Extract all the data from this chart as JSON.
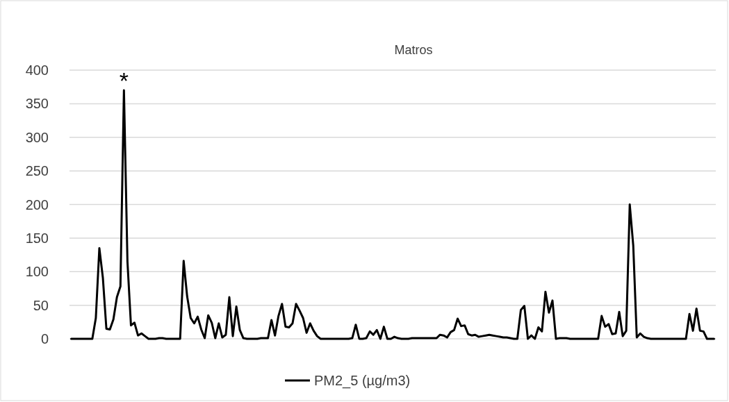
{
  "chart_data": {
    "type": "line",
    "title": "Matros",
    "categories": [
      null,
      null,
      null,
      null,
      null,
      null,
      null,
      null,
      null,
      null,
      null,
      null,
      null,
      null,
      null,
      null,
      null,
      null,
      null,
      null,
      null,
      null,
      null,
      null,
      null,
      null,
      null,
      null,
      null,
      null,
      null,
      null,
      null,
      null,
      null,
      null,
      null,
      null,
      null,
      null,
      null,
      null,
      null,
      null,
      null,
      null,
      null,
      null,
      null,
      null,
      null,
      null,
      null,
      null,
      null,
      null,
      null,
      null,
      null,
      null,
      null,
      null,
      null,
      null,
      null,
      null,
      null,
      null,
      null,
      null,
      null,
      null,
      null,
      null,
      null,
      null,
      null,
      null,
      null,
      null,
      null,
      null,
      null,
      null,
      null,
      null,
      null,
      null,
      null,
      null,
      null,
      null,
      null,
      null,
      null,
      null,
      null,
      null,
      null,
      null,
      null,
      null,
      null,
      null,
      null,
      null,
      null,
      null,
      null,
      null,
      null,
      null,
      null,
      null,
      null,
      null,
      null,
      null,
      null,
      null,
      null,
      null,
      null,
      null,
      null,
      null,
      null,
      null,
      null,
      null,
      null,
      null,
      null,
      null,
      null,
      null,
      null,
      null,
      null,
      null,
      null,
      null,
      null,
      null,
      null,
      null,
      null,
      null,
      null,
      null,
      null,
      null,
      null,
      null,
      null,
      null,
      null,
      null,
      null,
      null,
      null,
      null,
      null,
      null,
      null,
      null,
      null,
      null,
      null,
      null,
      null,
      null,
      null,
      null,
      null,
      null,
      null,
      null,
      null,
      null,
      null,
      null,
      null,
      null
    ],
    "series": [
      {
        "name": "PM2_5 (µg/m3)",
        "color": "#000000",
        "values": [
          0,
          0,
          0,
          0,
          0,
          0,
          0,
          31,
          135,
          91,
          15,
          14,
          29,
          62,
          78,
          370,
          115,
          20,
          24,
          5,
          8,
          4,
          0,
          0,
          0,
          1,
          1,
          0,
          0,
          0,
          0,
          0,
          116,
          63,
          31,
          23,
          33,
          14,
          1,
          35,
          24,
          1,
          23,
          2,
          6,
          62,
          4,
          48,
          13,
          1,
          0,
          0,
          0,
          0,
          1,
          1,
          1,
          28,
          5,
          34,
          52,
          18,
          17,
          23,
          52,
          42,
          31,
          9,
          23,
          12,
          4,
          0,
          0,
          0,
          0,
          0,
          0,
          0,
          0,
          0,
          1,
          21,
          0,
          0,
          1,
          11,
          6,
          13,
          0,
          18,
          0,
          0,
          3,
          1,
          0,
          0,
          0,
          1,
          1,
          1,
          1,
          1,
          1,
          1,
          1,
          6,
          5,
          2,
          10,
          13,
          30,
          19,
          20,
          7,
          5,
          6,
          3,
          4,
          5,
          6,
          5,
          4,
          3,
          2,
          2,
          1,
          0,
          0,
          43,
          49,
          0,
          5,
          0,
          17,
          11,
          70,
          39,
          57,
          0,
          1,
          1,
          1,
          0,
          0,
          0,
          0,
          0,
          0,
          0,
          0,
          0,
          34,
          18,
          22,
          7,
          8,
          40,
          4,
          12,
          200,
          139,
          2,
          8,
          3,
          1,
          0,
          0,
          0,
          0,
          0,
          0,
          0,
          0,
          0,
          0,
          0,
          37,
          12,
          45,
          12,
          11,
          0,
          0,
          0
        ]
      }
    ],
    "ylim": [
      0,
      400
    ],
    "yticks": [
      0,
      50,
      100,
      150,
      200,
      250,
      300,
      350,
      400
    ],
    "grid": "y",
    "legend": "bottom",
    "annotations": [
      {
        "text": "*",
        "y": 370
      }
    ]
  }
}
